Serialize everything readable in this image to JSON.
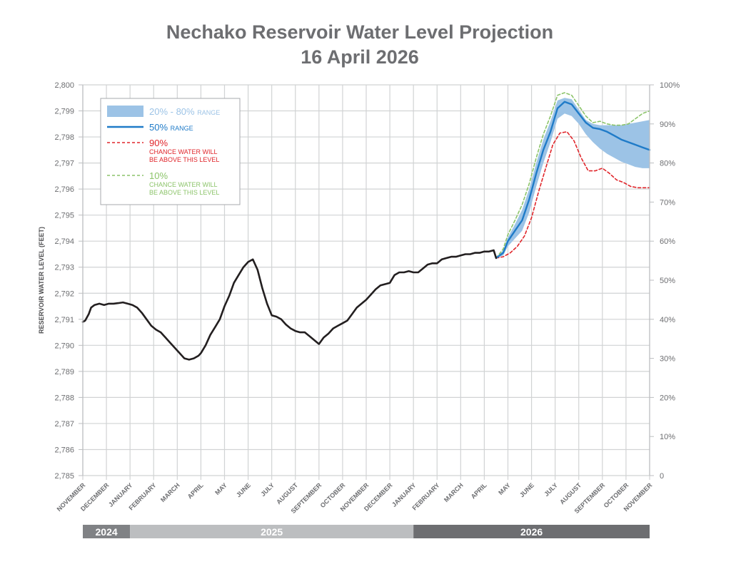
{
  "chart_data": {
    "type": "line",
    "title": "Nechako Reservoir Water Level Projection",
    "subtitle": "16 April 2026",
    "ylabel": "RESERVOIR WATER LEVEL (FEET)",
    "ylabel_right": "",
    "ylim": [
      2785,
      2800
    ],
    "yticks": [
      "2,800",
      "2,799",
      "2,798",
      "2,797",
      "2,796",
      "2,795",
      "2,794",
      "2,793",
      "2,792",
      "2,791",
      "2,790",
      "2,789",
      "2,788",
      "2,787",
      "2,786",
      "2,785"
    ],
    "ytick_values": [
      2800,
      2799,
      2798,
      2797,
      2796,
      2795,
      2794,
      2793,
      2792,
      2791,
      2790,
      2789,
      2788,
      2787,
      2786,
      2785
    ],
    "yticks_right": [
      "100%",
      "90%",
      "80%",
      "70%",
      "60%",
      "50%",
      "40%",
      "30%",
      "20%",
      "10%",
      "0"
    ],
    "ytick_right_values": [
      2800,
      2798.5,
      2797,
      2795.5,
      2794,
      2792.5,
      2791,
      2789.5,
      2788,
      2786.5,
      2785
    ],
    "xlim_months": [
      0,
      24
    ],
    "xticks": [
      "NOVEMBER",
      "DECEMBER",
      "JANUARY",
      "FEBRUARY",
      "MARCH",
      "APRIL",
      "MAY",
      "JUNE",
      "JULY",
      "AUGUST",
      "SEPTEMBER",
      "OCTOBER",
      "NOVEMBER",
      "DECEMBER",
      "JANUARY",
      "FEBRUARY",
      "MARCH",
      "APRIL",
      "MAY",
      "JUNE",
      "JULY",
      "AUGUST",
      "SEPTEMBER",
      "OCTOBER",
      "NOVEMBER"
    ],
    "years": [
      {
        "label": "2024",
        "start": 0,
        "end": 2,
        "color": "#808285"
      },
      {
        "label": "2025",
        "start": 2,
        "end": 14,
        "color": "#bcbec0"
      },
      {
        "label": "2026",
        "start": 14,
        "end": 24,
        "color": "#6d6e71"
      }
    ],
    "grid": true,
    "legend_position": "top-left",
    "legend": [
      {
        "key": "band",
        "label": "20% - 80%",
        "suffix": "RANGE",
        "color": "#9cc3e6"
      },
      {
        "key": "median",
        "label": "50%",
        "suffix": "RANGE",
        "color": "#1f7bc8"
      },
      {
        "key": "p90",
        "label": "90%",
        "note1": "CHANCE WATER WILL",
        "note2": "BE ABOVE THIS LEVEL",
        "color": "#e0262b"
      },
      {
        "key": "p10",
        "label": "10%",
        "note1": "CHANCE WATER WILL",
        "note2": "BE ABOVE THIS LEVEL",
        "color": "#8cc46a"
      }
    ],
    "series": [
      {
        "name": "Historical",
        "color": "#231f20",
        "x": [
          0,
          0.1,
          0.25,
          0.35,
          0.5,
          0.7,
          0.9,
          1.1,
          1.3,
          1.5,
          1.7,
          1.9,
          2.1,
          2.3,
          2.5,
          2.7,
          2.9,
          3.1,
          3.3,
          3.5,
          3.7,
          3.9,
          4.1,
          4.3,
          4.5,
          4.7,
          4.9,
          5.0,
          5.2,
          5.4,
          5.6,
          5.8,
          6.0,
          6.2,
          6.4,
          6.6,
          6.8,
          7.0,
          7.2,
          7.4,
          7.6,
          7.8,
          8.0,
          8.2,
          8.4,
          8.6,
          8.8,
          9.0,
          9.2,
          9.4,
          9.6,
          9.8,
          10.0,
          10.2,
          10.4,
          10.6,
          10.8,
          11.0,
          11.2,
          11.4,
          11.6,
          11.8,
          12.0,
          12.2,
          12.4,
          12.6,
          12.8,
          13.0,
          13.2,
          13.4,
          13.6,
          13.8,
          14.0,
          14.2,
          14.4,
          14.6,
          14.8,
          15.0,
          15.2,
          15.4,
          15.6,
          15.8,
          16.0,
          16.2,
          16.4,
          16.6,
          16.8,
          17.0,
          17.2,
          17.4,
          17.5
        ],
        "values": [
          2790.9,
          2790.95,
          2791.2,
          2791.45,
          2791.55,
          2791.6,
          2791.55,
          2791.6,
          2791.6,
          2791.62,
          2791.65,
          2791.6,
          2791.55,
          2791.45,
          2791.25,
          2791.0,
          2790.75,
          2790.6,
          2790.5,
          2790.3,
          2790.1,
          2789.9,
          2789.7,
          2789.5,
          2789.45,
          2789.5,
          2789.6,
          2789.7,
          2790.0,
          2790.4,
          2790.7,
          2791.0,
          2791.5,
          2791.9,
          2792.4,
          2792.7,
          2793.0,
          2793.2,
          2793.3,
          2792.9,
          2792.2,
          2791.6,
          2791.15,
          2791.1,
          2791.0,
          2790.8,
          2790.65,
          2790.55,
          2790.5,
          2790.5,
          2790.35,
          2790.2,
          2790.05,
          2790.3,
          2790.45,
          2790.65,
          2790.75,
          2790.85,
          2790.95,
          2791.2,
          2791.45,
          2791.6,
          2791.75,
          2791.95,
          2792.15,
          2792.3,
          2792.35,
          2792.4,
          2792.7,
          2792.8,
          2792.8,
          2792.85,
          2792.8,
          2792.8,
          2792.95,
          2793.1,
          2793.15,
          2793.15,
          2793.3,
          2793.35,
          2793.4,
          2793.4,
          2793.45,
          2793.5,
          2793.5,
          2793.55,
          2793.55,
          2793.6,
          2793.6,
          2793.65,
          2793.35
        ]
      },
      {
        "name": "50% range",
        "color": "#1f7bc8",
        "x": [
          17.5,
          17.8,
          18.0,
          18.3,
          18.6,
          18.9,
          19.2,
          19.5,
          19.8,
          20.1,
          20.4,
          20.7,
          21.0,
          21.3,
          21.6,
          21.9,
          22.2,
          22.5,
          22.8,
          23.1,
          23.4,
          23.7,
          24.0
        ],
        "values": [
          2793.35,
          2793.55,
          2794.0,
          2794.4,
          2794.8,
          2795.6,
          2796.6,
          2797.5,
          2798.2,
          2799.1,
          2799.35,
          2799.25,
          2798.9,
          2798.55,
          2798.35,
          2798.3,
          2798.2,
          2798.05,
          2797.9,
          2797.8,
          2797.7,
          2797.6,
          2797.5
        ]
      },
      {
        "name": "90% chance above",
        "color": "#e0262b",
        "dashed": true,
        "x": [
          17.5,
          17.8,
          18.1,
          18.4,
          18.7,
          19.0,
          19.3,
          19.6,
          19.9,
          20.2,
          20.5,
          20.8,
          21.1,
          21.4,
          21.7,
          22.0,
          22.3,
          22.6,
          22.9,
          23.2,
          23.5,
          23.8,
          24.0
        ],
        "values": [
          2793.35,
          2793.4,
          2793.55,
          2793.8,
          2794.2,
          2794.9,
          2795.9,
          2796.8,
          2797.7,
          2798.15,
          2798.2,
          2797.85,
          2797.2,
          2796.7,
          2796.7,
          2796.8,
          2796.6,
          2796.35,
          2796.25,
          2796.1,
          2796.05,
          2796.05,
          2796.05
        ]
      },
      {
        "name": "10% chance above",
        "color": "#8cc46a",
        "dashed": true,
        "x": [
          17.5,
          17.8,
          18.0,
          18.3,
          18.6,
          18.9,
          19.2,
          19.5,
          19.8,
          20.1,
          20.4,
          20.7,
          21.0,
          21.3,
          21.6,
          21.9,
          22.2,
          22.5,
          22.8,
          23.1,
          23.4,
          23.7,
          24.0
        ],
        "values": [
          2793.35,
          2793.7,
          2794.25,
          2794.8,
          2795.4,
          2796.2,
          2797.2,
          2798.1,
          2798.8,
          2799.6,
          2799.7,
          2799.6,
          2799.2,
          2798.8,
          2798.55,
          2798.6,
          2798.5,
          2798.45,
          2798.45,
          2798.5,
          2798.7,
          2798.9,
          2799.0
        ]
      }
    ],
    "band": {
      "name": "20% - 80% range",
      "color": "#9cc3e6",
      "x": [
        17.5,
        17.8,
        18.0,
        18.3,
        18.6,
        18.9,
        19.2,
        19.5,
        19.8,
        20.1,
        20.4,
        20.7,
        21.0,
        21.3,
        21.6,
        21.9,
        22.2,
        22.5,
        22.8,
        23.1,
        23.4,
        23.7,
        24.0
      ],
      "upper": [
        2793.35,
        2793.65,
        2794.15,
        2794.65,
        2795.2,
        2796.0,
        2797.0,
        2797.9,
        2798.6,
        2799.4,
        2799.5,
        2799.45,
        2799.05,
        2798.65,
        2798.5,
        2798.45,
        2798.45,
        2798.45,
        2798.45,
        2798.5,
        2798.55,
        2798.6,
        2798.65
      ],
      "lower": [
        2793.35,
        2793.45,
        2793.8,
        2794.1,
        2794.4,
        2795.1,
        2796.1,
        2797.0,
        2797.8,
        2798.7,
        2798.9,
        2798.8,
        2798.5,
        2798.1,
        2797.8,
        2797.55,
        2797.35,
        2797.2,
        2797.05,
        2796.95,
        2796.85,
        2796.8,
        2796.8
      ]
    }
  }
}
